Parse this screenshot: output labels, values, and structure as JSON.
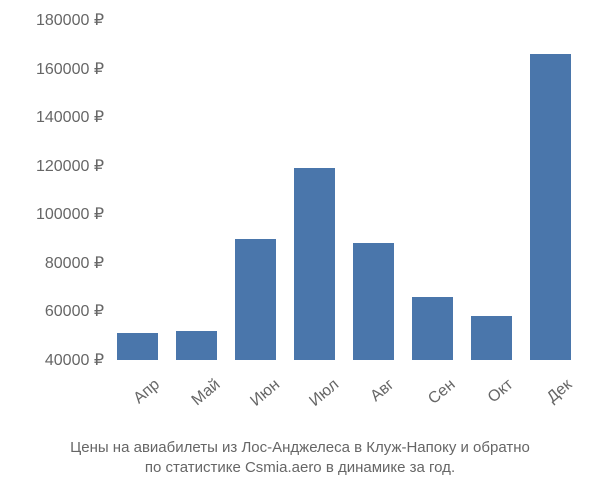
{
  "chart": {
    "type": "bar",
    "categories": [
      "Апр",
      "Май",
      "Июн",
      "Июл",
      "Авг",
      "Сен",
      "Окт",
      "Дек"
    ],
    "values": [
      51000,
      52000,
      90000,
      119000,
      88000,
      66000,
      58000,
      166000
    ],
    "bar_color": "#4a76ab",
    "bar_width": 0.7,
    "ymin": 40000,
    "ymax": 180000,
    "ytick_step": 20000,
    "currency_suffix": " ₽",
    "y_ticks": [
      40000,
      60000,
      80000,
      100000,
      120000,
      140000,
      160000,
      180000
    ],
    "y_tick_labels": [
      "40000 ₽",
      "60000 ₽",
      "80000 ₽",
      "100000 ₽",
      "120000 ₽",
      "140000 ₽",
      "160000 ₽",
      "180000 ₽"
    ],
    "background_color": "#ffffff",
    "axis_text_color": "#666666",
    "label_fontsize": 16,
    "x_label_rotation_deg": -40
  },
  "caption": {
    "line1": "Цены на авиабилеты из Лос-Анджелеса в Клуж-Напоку и обратно",
    "line2": "по статистике Csmia.aero в динамике за год.",
    "fontsize": 15,
    "color": "#666666"
  }
}
